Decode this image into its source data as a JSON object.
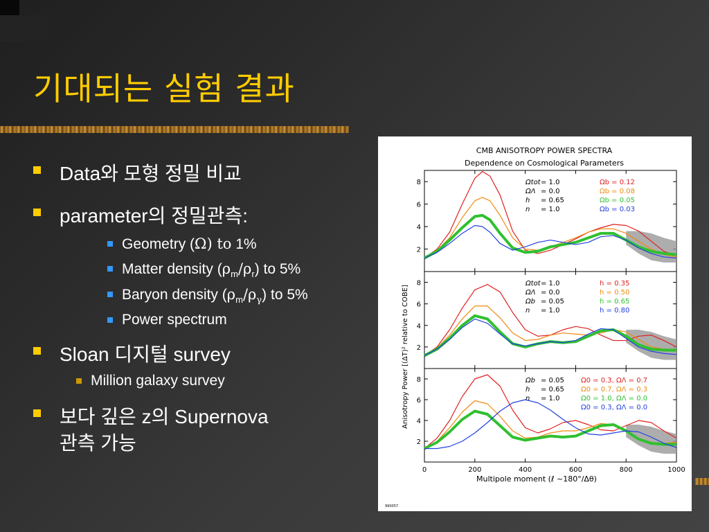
{
  "slide": {
    "title": "기대되는 실험 결과",
    "bullets": [
      {
        "text": "Data와 모형 정밀 비교"
      },
      {
        "text": "parameter의  정밀관측:"
      },
      {
        "text": "Sloan 디지털 survey"
      },
      {
        "text": "보다 깊은 z의 Supernova"
      },
      {
        "text": "관측 가능"
      }
    ],
    "sub_geometry": {
      "a": "Geometry (",
      "omega": "Ω",
      "b": ") to",
      "c": " 1%"
    },
    "sub_matter": {
      "a": "Matter density (",
      "rho": "ρ",
      "m": "m",
      "slash": "/",
      "rho2": "ρ",
      "r": "r",
      "b": ") to 5%"
    },
    "sub_baryon": {
      "a": "Baryon density (",
      "rho": "ρ",
      "m": "m",
      "slash": "/",
      "rho2": "ρ",
      "g": "γ",
      "b": ")  to 5%"
    },
    "sub_power": {
      "text": "Power spectrum"
    },
    "sub_million": {
      "text": "Million galaxy survey"
    }
  },
  "colors": {
    "title": "#ffcc00",
    "bullet_main": "#ffcc00",
    "bullet_sub": "#3399ff",
    "bullet_sub2": "#cc9900"
  },
  "chart_data": {
    "type": "line",
    "title": "CMB ANISOTROPY POWER SPECTRA",
    "subtitle": "Dependence on Cosmological Parameters",
    "xlabel": "Multipole moment (ℓ ~180°/Δθ)",
    "ylabel": "Anisotropy Power [(ΔT)² relative to COBE]",
    "xlim": [
      0,
      1000
    ],
    "ylim": [
      0,
      9
    ],
    "xticks": [
      0,
      200,
      400,
      600,
      800,
      1000
    ],
    "yticks": [
      2,
      4,
      6,
      8
    ],
    "footnote": "990057",
    "panels": [
      {
        "fixed": [
          {
            "name": "Ωtot",
            "value": "= 1.0"
          },
          {
            "name": "ΩΛ",
            "value": "= 0.0"
          },
          {
            "name": "h",
            "value": "= 0.65"
          },
          {
            "name": "n",
            "value": "= 1.0"
          }
        ],
        "varied": [
          {
            "label": "Ωb = 0.12",
            "color": "#e02020"
          },
          {
            "label": "Ωb = 0.08",
            "color": "#f08a10"
          },
          {
            "label": "Ωb = 0.05",
            "color": "#30c030"
          },
          {
            "label": "Ωb = 0.03",
            "color": "#2040e0"
          }
        ],
        "series": [
          {
            "color": "#e02020",
            "x": [
              0,
              50,
              100,
              150,
              200,
              230,
              260,
              300,
              350,
              400,
              450,
              500,
              550,
              600,
              650,
              700,
              750,
              800,
              850,
              900,
              950,
              1000
            ],
            "y": [
              1.2,
              2,
              3.5,
              6,
              8.3,
              8.9,
              8.5,
              6.8,
              3.6,
              1.9,
              1.6,
              1.9,
              2.4,
              2.9,
              3.5,
              3.9,
              4.2,
              4.1,
              3.6,
              2.7,
              1.8,
              1.4
            ]
          },
          {
            "color": "#f08a10",
            "x": [
              0,
              50,
              100,
              150,
              200,
              230,
              260,
              300,
              350,
              400,
              450,
              500,
              550,
              600,
              650,
              700,
              750,
              800,
              850,
              900,
              950,
              1000
            ],
            "y": [
              1.2,
              1.9,
              3,
              4.8,
              6.3,
              6.6,
              6.3,
              5,
              3,
              2,
              1.9,
              2.2,
              2.6,
              3,
              3.5,
              3.8,
              3.8,
              3.4,
              2.7,
              2,
              1.5,
              1.3
            ]
          },
          {
            "color": "#30c030",
            "x": [
              0,
              50,
              100,
              150,
              200,
              230,
              260,
              300,
              350,
              400,
              450,
              500,
              550,
              600,
              650,
              700,
              750,
              800,
              850,
              900,
              950,
              1000
            ],
            "y": [
              1.2,
              1.8,
              2.8,
              3.9,
              4.9,
              5,
              4.6,
              3.4,
              2.1,
              1.7,
              1.8,
              2.2,
              2.4,
              2.6,
              3,
              3.4,
              3.4,
              2.8,
              2.2,
              1.8,
              1.6,
              1.5
            ]
          },
          {
            "color": "#2040e0",
            "x": [
              0,
              50,
              100,
              150,
              200,
              230,
              260,
              300,
              350,
              400,
              450,
              500,
              550,
              600,
              650,
              700,
              750,
              800,
              850,
              900,
              950,
              1000
            ],
            "y": [
              1.2,
              1.7,
              2.5,
              3.4,
              4.1,
              4,
              3.5,
              2.5,
              1.9,
              2.2,
              2.6,
              2.8,
              2.6,
              2.4,
              2.6,
              3.1,
              3.2,
              2.8,
              2.1,
              1.6,
              1.3,
              1.2
            ]
          }
        ]
      },
      {
        "fixed": [
          {
            "name": "Ωtot",
            "value": "= 1.0"
          },
          {
            "name": "ΩΛ",
            "value": "= 0.0"
          },
          {
            "name": "Ωb",
            "value": "= 0.05"
          },
          {
            "name": "n",
            "value": "= 1.0"
          }
        ],
        "varied": [
          {
            "label": "h = 0.35",
            "color": "#e02020"
          },
          {
            "label": "h = 0.50",
            "color": "#f08a10"
          },
          {
            "label": "h = 0.65",
            "color": "#30c030"
          },
          {
            "label": "h = 0.80",
            "color": "#2040e0"
          }
        ],
        "series": [
          {
            "color": "#e02020",
            "x": [
              0,
              50,
              100,
              150,
              200,
              250,
              300,
              350,
              400,
              450,
              500,
              550,
              600,
              650,
              700,
              750,
              800,
              850,
              900,
              950,
              1000
            ],
            "y": [
              1.2,
              2,
              3.6,
              5.6,
              7.3,
              7.8,
              7.1,
              5.2,
              3.6,
              3,
              3.1,
              3.6,
              3.9,
              3.7,
              3.1,
              2.6,
              2.6,
              3,
              3.1,
              2.6,
              2
            ]
          },
          {
            "color": "#f08a10",
            "x": [
              0,
              50,
              100,
              150,
              200,
              250,
              300,
              350,
              400,
              450,
              500,
              550,
              600,
              650,
              700,
              750,
              800,
              850,
              900,
              950,
              1000
            ],
            "y": [
              1.2,
              1.9,
              3.1,
              4.6,
              5.8,
              5.8,
              4.7,
              3.3,
              2.6,
              2.7,
              3.1,
              3.3,
              3.2,
              3.1,
              3.3,
              3.6,
              3.4,
              2.7,
              2,
              1.8,
              1.8
            ]
          },
          {
            "color": "#30c030",
            "x": [
              0,
              50,
              100,
              150,
              200,
              250,
              300,
              350,
              400,
              450,
              500,
              550,
              600,
              650,
              700,
              750,
              800,
              850,
              900,
              950,
              1000
            ],
            "y": [
              1.2,
              1.8,
              2.8,
              4,
              4.9,
              4.6,
              3.4,
              2.3,
              2,
              2.3,
              2.5,
              2.4,
              2.5,
              3,
              3.5,
              3.6,
              3,
              2.2,
              1.8,
              1.7,
              1.7
            ]
          },
          {
            "color": "#2040e0",
            "x": [
              0,
              50,
              100,
              150,
              200,
              250,
              300,
              350,
              400,
              450,
              500,
              550,
              600,
              650,
              700,
              750,
              800,
              850,
              900,
              950,
              1000
            ],
            "y": [
              1.2,
              1.8,
              2.7,
              3.8,
              4.6,
              4.2,
              3.2,
              2.3,
              2.1,
              2.3,
              2.5,
              2.4,
              2.6,
              3.2,
              3.7,
              3.6,
              2.8,
              2,
              1.6,
              1.4,
              1.3
            ]
          }
        ]
      },
      {
        "fixed": [
          {
            "name": "Ωb",
            "value": "= 0.05"
          },
          {
            "name": "h",
            "value": "= 0.65"
          },
          {
            "name": "n",
            "value": "= 1.0"
          }
        ],
        "varied": [
          {
            "label": "Ω0 = 0.3, ΩΛ = 0.7",
            "color": "#e02020"
          },
          {
            "label": "Ω0 = 0.7, ΩΛ = 0.3",
            "color": "#f08a10"
          },
          {
            "label": "Ω0 = 1.0, ΩΛ = 0.0",
            "color": "#30c030"
          },
          {
            "label": "Ω0 = 0.3, ΩΛ = 0.0",
            "color": "#2040e0"
          }
        ],
        "series": [
          {
            "color": "#e02020",
            "x": [
              0,
              50,
              100,
              150,
              200,
              250,
              300,
              350,
              400,
              450,
              500,
              550,
              600,
              650,
              700,
              750,
              800,
              850,
              900,
              950,
              1000
            ],
            "y": [
              1.3,
              2.3,
              4,
              6.3,
              8,
              8.4,
              7.3,
              5,
              3.3,
              2.8,
              3.2,
              3.8,
              4,
              3.6,
              3.1,
              3,
              3.5,
              4,
              3.8,
              3,
              2.3
            ]
          },
          {
            "color": "#f08a10",
            "x": [
              0,
              50,
              100,
              150,
              200,
              250,
              300,
              350,
              400,
              450,
              500,
              550,
              600,
              650,
              700,
              750,
              800,
              850,
              900,
              950,
              1000
            ],
            "y": [
              1.3,
              2,
              3.3,
              4.8,
              5.9,
              5.6,
              4.4,
              3,
              2.3,
              2.4,
              2.8,
              3,
              3,
              3.3,
              3.7,
              3.6,
              3,
              2.3,
              1.9,
              1.8,
              1.9
            ]
          },
          {
            "color": "#30c030",
            "x": [
              0,
              50,
              100,
              150,
              200,
              250,
              300,
              350,
              400,
              450,
              500,
              550,
              600,
              650,
              700,
              750,
              800,
              850,
              900,
              950,
              1000
            ],
            "y": [
              1.3,
              1.9,
              2.9,
              4.1,
              4.9,
              4.6,
              3.5,
              2.4,
              2.1,
              2.3,
              2.5,
              2.4,
              2.5,
              3,
              3.5,
              3.6,
              3,
              2.2,
              1.8,
              1.7,
              1.7
            ]
          },
          {
            "color": "#2040e0",
            "x": [
              0,
              50,
              100,
              150,
              200,
              250,
              300,
              350,
              400,
              450,
              500,
              550,
              600,
              650,
              700,
              750,
              800,
              850,
              900,
              950,
              1000
            ],
            "y": [
              1.3,
              1.3,
              1.5,
              2,
              2.8,
              3.8,
              4.9,
              5.7,
              6,
              5.7,
              5,
              4.1,
              3.3,
              2.7,
              2.6,
              2.8,
              3,
              2.9,
              2.4,
              1.8,
              1.4
            ]
          }
        ]
      }
    ]
  }
}
